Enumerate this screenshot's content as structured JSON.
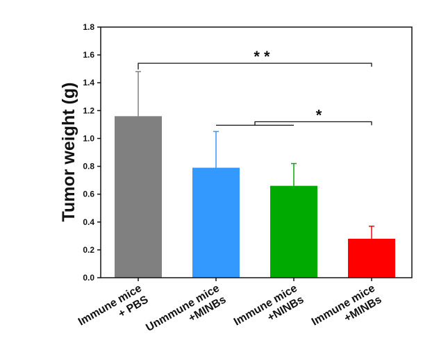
{
  "chart_data": {
    "type": "bar",
    "title": "",
    "xlabel": "",
    "ylabel": "Tumor weight (g)",
    "ylim": [
      0,
      1.8
    ],
    "yticks": [
      0.0,
      0.2,
      0.4,
      0.6,
      0.8,
      1.0,
      1.2,
      1.4,
      1.6,
      1.8
    ],
    "ytick_labels": [
      "0.0",
      "0.2",
      "0.4",
      "0.6",
      "0.8",
      "1.0",
      "1.2",
      "1.4",
      "1.6",
      "1.8"
    ],
    "grid": false,
    "categories": [
      [
        "Immune mice",
        "+ PBS"
      ],
      [
        "Unmmune mice",
        "+MINBs"
      ],
      [
        "Immune mice",
        "+NINBs"
      ],
      [
        "Immune mice",
        "+MINBs"
      ]
    ],
    "values": [
      1.16,
      0.79,
      0.66,
      0.28
    ],
    "errors": [
      0.32,
      0.26,
      0.16,
      0.09
    ],
    "colors": [
      "#808080",
      "#3399ff",
      "#00aa00",
      "#ff0000"
    ],
    "error_bar_colors": [
      "#808080",
      "#3399ff",
      "#00aa00",
      "#ff0000"
    ],
    "significance": [
      {
        "label": "* *",
        "groups": [
          0,
          3
        ],
        "y": 1.54
      },
      {
        "label": "*",
        "groups": [
          [
            1,
            2
          ],
          3
        ],
        "y": 1.12
      }
    ]
  }
}
